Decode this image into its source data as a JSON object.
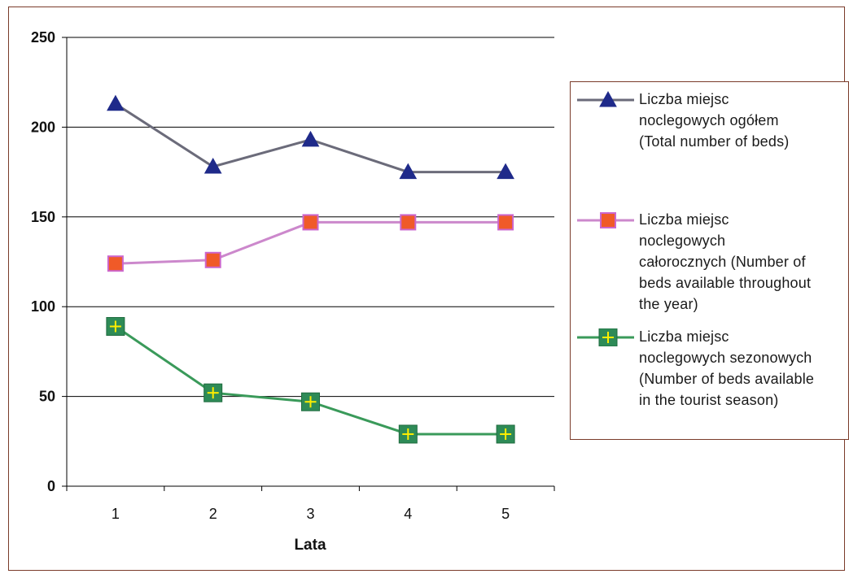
{
  "chart_data": {
    "type": "line",
    "categories": [
      "1",
      "2",
      "3",
      "4",
      "5"
    ],
    "xlabel": "Lata",
    "ylabel": "",
    "ylim": [
      0,
      250
    ],
    "yticks": [
      0,
      50,
      100,
      150,
      200,
      250
    ],
    "grid": "horizontal",
    "legend_position": "right",
    "series": [
      {
        "name": "Liczba miejsc\nnoclegowych ogółem\n(Total number of beds)",
        "values": [
          213,
          178,
          193,
          175,
          175
        ],
        "color": "#6b6b7a",
        "marker": "triangle",
        "marker_color": "#1f2a8a"
      },
      {
        "name": "Liczba miejsc\nnoclegowych\ncałorocznych (Number of\nbeds available throughout\nthe year)",
        "values": [
          124,
          126,
          147,
          147,
          147
        ],
        "color": "#cc88cc",
        "marker": "square",
        "marker_color": "#f05a28"
      },
      {
        "name": "Liczba miejsc\nnoclegowych sezonowych\n(Number of beds available\nin the tourist season)",
        "values": [
          89,
          52,
          47,
          29,
          29
        ],
        "color": "#3a9a5a",
        "marker": "square-plus",
        "marker_color": "#2e8b57"
      }
    ]
  }
}
